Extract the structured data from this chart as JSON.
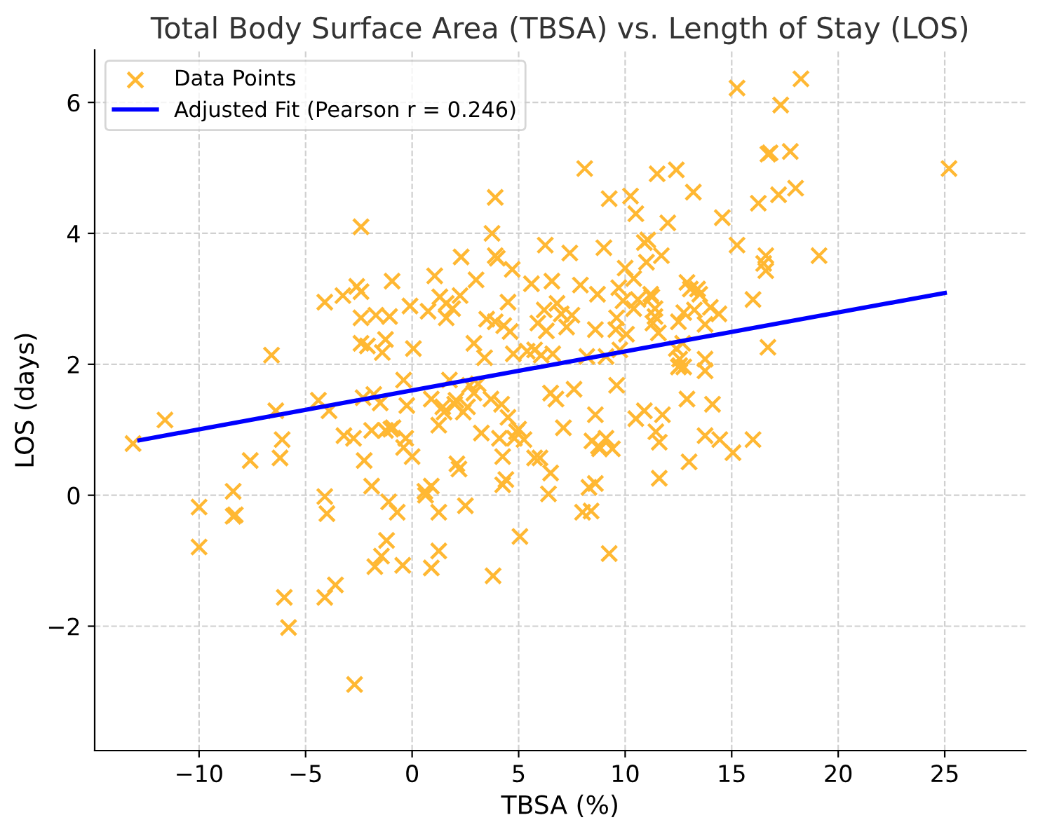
{
  "chart_data": {
    "type": "scatter",
    "title": "Total Body Surface Area (TBSA) vs. Length of Stay (LOS)",
    "xlabel": "TBSA (%)",
    "ylabel": "LOS (days)",
    "xlim": [
      -14.9,
      28.8
    ],
    "ylim": [
      -3.9,
      6.8
    ],
    "xticks": [
      -10,
      -5,
      0,
      5,
      10,
      15,
      20,
      25
    ],
    "yticks": [
      -2,
      0,
      2,
      4,
      6
    ],
    "grid": true,
    "legend": "top left",
    "series": [
      {
        "name": "Data Points",
        "marker": "cross",
        "color": "#ffb833",
        "x": [
          -13.1,
          -11.6,
          -10,
          -10,
          -8.4,
          -8.4,
          -8.3,
          -7.6,
          -6.6,
          -6.4,
          -6.2,
          -6.1,
          -6.0,
          -5.8,
          -4.4,
          -4.1,
          -4.1,
          -4.0,
          -4.1,
          -3.9,
          -3.6,
          -3.25,
          -3.2,
          -2.75,
          -2.7,
          -2.6,
          -2.4,
          -2.4,
          -2.4,
          -2.4,
          -2.3,
          -2.25,
          -2.1,
          -1.9,
          -1.9,
          -1.8,
          -1.75,
          -1.7,
          -1.5,
          -1.4,
          -1.25,
          -1.44,
          -1.25,
          -1.2,
          -1.1,
          -1.06,
          -1.0,
          -0.94,
          -0.9,
          -0.7,
          -0.4,
          -0.44,
          -0.4,
          -0.3,
          -0.25,
          -0.1,
          0,
          0.06,
          0.6,
          0.63,
          0.75,
          0.9,
          0.9,
          0.9,
          1.06,
          1.25,
          1.25,
          1.25,
          1.3,
          1.44,
          1.5,
          1.6,
          1.6,
          1.75,
          1.9,
          2.0,
          2.06,
          2.1,
          2.2,
          2.25,
          2.3,
          2.4,
          2.5,
          2.6,
          2.7,
          2.9,
          2.9,
          3.0,
          3.1,
          3.25,
          3.4,
          3.5,
          3.7,
          3.75,
          3.8,
          3.9,
          3.9,
          4.0,
          3.9,
          4.1,
          4.2,
          4.25,
          4.25,
          4.3,
          4.4,
          4.5,
          4.5,
          4.6,
          4.7,
          4.75,
          4.8,
          4.9,
          5.0,
          5.06,
          5.25,
          5.4,
          5.6,
          5.75,
          5.75,
          5.9,
          6.0,
          6.06,
          6.2,
          6.3,
          6.25,
          6.4,
          6.5,
          6.5,
          6.56,
          6.6,
          6.75,
          6.8,
          7.0,
          7.1,
          7.25,
          7.4,
          7.5,
          7.6,
          7.9,
          8.0,
          8.1,
          8.2,
          8.3,
          8.4,
          8.44,
          8.6,
          8.6,
          8.6,
          8.7,
          8.75,
          8.8,
          9.0,
          9.1,
          9.1,
          9.25,
          9.25,
          9.4,
          9.56,
          9.6,
          9.6,
          9.7,
          9.75,
          9.9,
          10.0,
          10.06,
          10.25,
          10.4,
          10.4,
          10.5,
          10.6,
          10.5,
          10.9,
          10.9,
          11.0,
          11.06,
          11.2,
          11.25,
          11.3,
          11.4,
          11.44,
          11.4,
          11.5,
          11.56,
          11.6,
          11.6,
          11.7,
          11.75,
          12.0,
          12.4,
          12.4,
          12.5,
          12.5,
          12.56,
          12.56,
          12.7,
          12.75,
          12.75,
          12.9,
          12.9,
          13.0,
          13.06,
          13.2,
          13.25,
          13.4,
          13.5,
          13.75,
          13.75,
          13.75,
          13.75,
          14.0,
          14.1,
          14.4,
          14.44,
          14.56,
          15.06,
          15.25,
          15.25,
          16.0,
          16.0,
          16.25,
          16.5,
          16.6,
          16.6,
          16.7,
          16.7,
          16.8,
          17.2,
          17.3,
          17.75,
          18.0,
          18.25,
          19.1,
          25.2
        ],
        "values": [
          0.79,
          1.15,
          -0.18,
          -0.79,
          0.06,
          -0.32,
          -0.3,
          0.53,
          2.14,
          1.29,
          0.57,
          0.85,
          -1.56,
          -2.02,
          1.45,
          2.95,
          -0.02,
          -0.28,
          -1.56,
          1.29,
          -1.37,
          3.05,
          0.91,
          0.87,
          -2.89,
          3.19,
          4.1,
          3.11,
          2.32,
          2.71,
          1.49,
          0.53,
          2.28,
          0.99,
          0.14,
          1.54,
          -1.09,
          2.75,
          1.41,
          2.18,
          2.38,
          -0.93,
          0.99,
          -0.69,
          -0.1,
          2.73,
          1.01,
          3.27,
          1.03,
          -0.26,
          1.76,
          -1.07,
          0.73,
          0.87,
          1.37,
          2.89,
          0.59,
          2.24,
          0.06,
          0.0,
          2.81,
          0.14,
          -1.11,
          1.47,
          3.35,
          -0.26,
          -0.85,
          1.07,
          3.03,
          1.35,
          1.27,
          2.93,
          2.71,
          1.76,
          2.85,
          1.39,
          1.45,
          0.48,
          0.4,
          3.05,
          3.64,
          1.27,
          -0.16,
          1.35,
          1.68,
          2.32,
          1.56,
          3.29,
          1.7,
          0.95,
          2.1,
          2.69,
          1.47,
          4.0,
          -1.23,
          3.66,
          4.55,
          3.62,
          2.65,
          0.87,
          1.39,
          0.16,
          0.59,
          2.59,
          0.24,
          1.19,
          2.95,
          2.5,
          3.45,
          2.16,
          0.87,
          0.97,
          1.01,
          -0.63,
          0.85,
          2.2,
          3.23,
          2.22,
          0.57,
          2.63,
          0.57,
          2.14,
          2.83,
          2.51,
          3.82,
          0.02,
          0.34,
          1.56,
          3.27,
          2.16,
          1.47,
          2.93,
          2.77,
          1.03,
          2.57,
          3.7,
          2.75,
          1.62,
          3.21,
          -0.26,
          4.99,
          2.12,
          0.12,
          -0.24,
          0.83,
          0.18,
          1.23,
          2.53,
          3.07,
          0.75,
          0.71,
          3.78,
          0.87,
          2.12,
          4.53,
          -0.89,
          0.71,
          2.53,
          2.71,
          1.68,
          3.17,
          2.22,
          2.97,
          3.47,
          2.46,
          4.57,
          2.85,
          3.31,
          4.3,
          2.99,
          1.17,
          1.29,
          3.86,
          3.56,
          3.9,
          3.07,
          3.03,
          2.63,
          2.85,
          0.97,
          2.73,
          4.91,
          2.48,
          0.26,
          0.81,
          3.66,
          1.23,
          4.16,
          2.24,
          4.97,
          1.96,
          2.65,
          2.08,
          1.98,
          2.32,
          1.96,
          2.79,
          1.47,
          3.25,
          0.51,
          3.15,
          4.63,
          2.83,
          3.15,
          3.07,
          2.61,
          0.91,
          2.08,
          1.9,
          2.87,
          1.39,
          2.77,
          0.85,
          4.24,
          0.65,
          6.22,
          3.82,
          2.99,
          0.85,
          4.46,
          3.54,
          3.66,
          3.43,
          2.26,
          5.21,
          5.23,
          4.59,
          5.96,
          5.25,
          4.69,
          6.36,
          3.66,
          4.99
        ]
      },
      {
        "name": "Adjusted Fit (Pearson r = 0.246)",
        "type": "line",
        "color": "#0000ff",
        "line_style": "solid",
        "x": [
          -12.8,
          25
        ],
        "values": [
          0.84,
          3.09
        ]
      }
    ]
  }
}
